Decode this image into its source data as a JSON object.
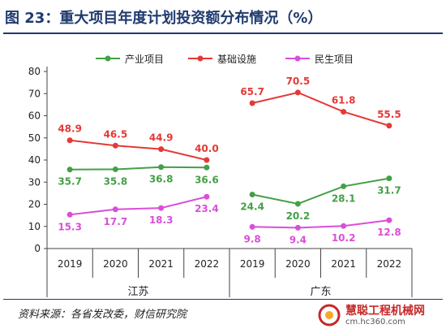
{
  "title": "图 23：重大项目年度计划投资额分布情况（%）",
  "source": "资料来源：各省发改委，财信研究院",
  "watermark": {
    "main": "慧聪工程机械网",
    "sub": "cm.hc360.com"
  },
  "colors": {
    "title": "#1f3a6e",
    "series": [
      "#43a047",
      "#e53935",
      "#d94fd9"
    ]
  },
  "chart_data": {
    "type": "line",
    "ylim": [
      0,
      80
    ],
    "yticks": [
      0,
      10,
      20,
      30,
      40,
      50,
      60,
      70,
      80
    ],
    "legend_position": "top",
    "group_labels": [
      "江苏",
      "广东"
    ],
    "categories": [
      "2019",
      "2020",
      "2021",
      "2022"
    ],
    "series": [
      {
        "name": "产业项目",
        "color": "#43a047",
        "groups": [
          [
            35.7,
            35.8,
            36.8,
            36.6
          ],
          [
            24.4,
            20.2,
            28.1,
            31.7
          ]
        ]
      },
      {
        "name": "基础设施",
        "color": "#e53935",
        "groups": [
          [
            48.9,
            46.5,
            44.9,
            40.0
          ],
          [
            65.7,
            70.5,
            61.8,
            55.5
          ]
        ]
      },
      {
        "name": "民生项目",
        "color": "#d94fd9",
        "groups": [
          [
            15.3,
            17.7,
            18.3,
            23.4
          ],
          [
            9.8,
            9.4,
            10.2,
            12.8
          ]
        ]
      }
    ]
  }
}
